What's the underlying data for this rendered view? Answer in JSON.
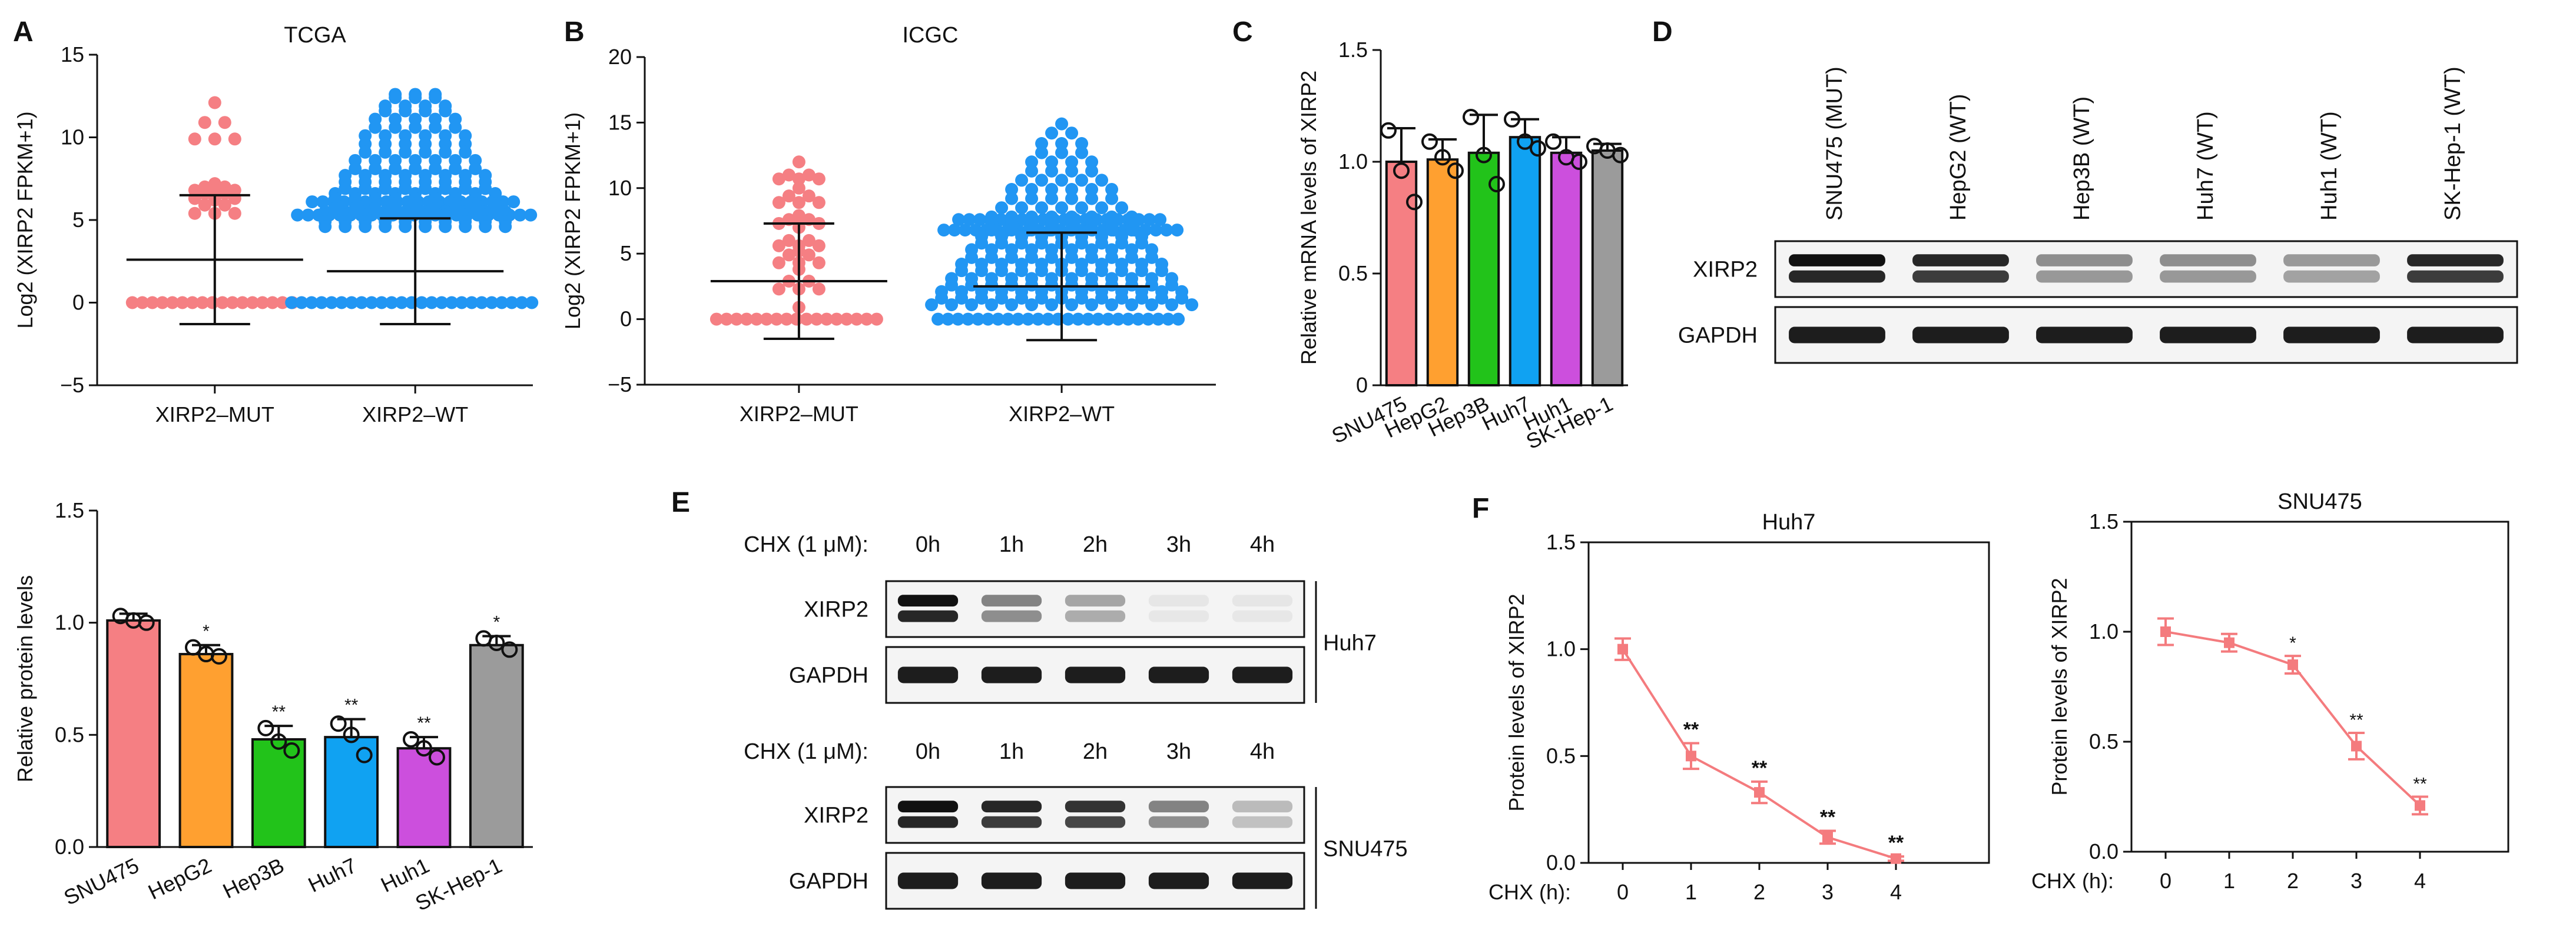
{
  "panel_labels": {
    "A": "A",
    "B": "B",
    "C": "C",
    "D": "D",
    "E": "E",
    "F": "F"
  },
  "colors": {
    "salmon": "#f57f83",
    "blue": "#2196f3",
    "orange": "#ffa030",
    "green": "#22c31a",
    "azure": "#10a2f2",
    "violet": "#cc4fdd",
    "gray": "#9b9b9b",
    "line_red": "#f47b7e"
  },
  "chart_data": [
    {
      "id": "A",
      "type": "scatter",
      "title": "TCGA",
      "ylabel": "Log2 (XIRP2 FPKM+1)",
      "ylim": [
        -5,
        15
      ],
      "yticks": [
        -5,
        0,
        5,
        10,
        15
      ],
      "ytick_labels": [
        "−5",
        "0",
        "5",
        "10",
        "15"
      ],
      "categories": [
        "XIRP2–MUT",
        "XIRP2–WT"
      ],
      "groups": [
        {
          "name": "XIRP2–MUT",
          "mean": 2.6,
          "sd_high": 6.5,
          "sd_low": -1.3,
          "points": [
            12.1,
            10.9,
            9.9,
            7.2,
            7.0,
            6.8,
            6.6,
            6.6,
            6.3,
            6.2,
            5.9,
            5.4
          ]
        },
        {
          "name": "XIRP2–WT",
          "mean": 1.9,
          "sd_high": 5.1,
          "sd_low": -1.3,
          "points": [
            12.6,
            12.4,
            11.9,
            11.6,
            11.1,
            10.6,
            10.1,
            9.6,
            9.1,
            8.6,
            8.1,
            7.7,
            7.3,
            6.9,
            6.6,
            6.3,
            6.0,
            5.7,
            5.5,
            5.3,
            5.1,
            4.9,
            4.6
          ]
        }
      ]
    },
    {
      "id": "B",
      "type": "scatter",
      "title": "ICGC",
      "ylabel": "Log2 (XIRP2 FPKM+1)",
      "ylim": [
        -5,
        20
      ],
      "yticks": [
        -5,
        0,
        5,
        10,
        15,
        20
      ],
      "ytick_labels": [
        "−5",
        "0",
        "5",
        "10",
        "15",
        "20"
      ],
      "categories": [
        "XIRP2–MUT",
        "XIRP2–WT"
      ],
      "groups": [
        {
          "name": "XIRP2–MUT",
          "mean": 2.9,
          "sd_high": 7.3,
          "sd_low": -1.5,
          "points": [
            12.0,
            11.0,
            10.7,
            10.0,
            9.4,
            8.9,
            7.9,
            7.6,
            7.3,
            7.0,
            6.0,
            5.6,
            5.2,
            4.9,
            4.3,
            3.8,
            2.9,
            2.3,
            0.9
          ]
        },
        {
          "name": "XIRP2–WT",
          "mean": 2.5,
          "sd_high": 6.6,
          "sd_low": -1.6,
          "points": [
            14.9,
            14.2,
            13.4,
            12.7,
            12.0,
            11.3,
            10.6,
            9.9,
            9.2,
            8.5,
            7.8,
            7.3,
            6.8,
            6.3,
            5.8,
            5.3,
            4.7,
            4.2,
            3.7,
            3.1,
            2.6,
            2.1,
            1.6,
            1.1
          ]
        }
      ]
    },
    {
      "id": "C",
      "type": "bar",
      "title": "",
      "ylabel": "Relative mRNA levels of XIRP2",
      "ylim": [
        0,
        1.5
      ],
      "yticks": [
        0,
        0.5,
        1.0,
        1.5
      ],
      "ytick_labels": [
        "0",
        "0.5",
        "1.0",
        "1.5"
      ],
      "categories": [
        "SNU475",
        "HepG2",
        "Hep3B",
        "Huh7",
        "Huh1",
        "SK-Hep-1"
      ],
      "values": [
        1.0,
        1.01,
        1.04,
        1.11,
        1.04,
        1.05
      ],
      "errors": [
        0.15,
        0.09,
        0.17,
        0.08,
        0.07,
        0.03
      ],
      "points": [
        [
          1.14,
          0.96,
          0.82
        ],
        [
          1.09,
          1.02,
          0.96
        ],
        [
          1.2,
          1.03,
          0.9
        ],
        [
          1.19,
          1.09,
          1.06
        ],
        [
          1.09,
          1.02,
          1.0
        ],
        [
          1.07,
          1.05,
          1.03
        ]
      ],
      "stars": [
        "",
        "",
        "",
        "",
        "",
        ""
      ]
    },
    {
      "id": "A2",
      "type": "bar",
      "title": "",
      "ylabel": "Relative protein levels",
      "ylim": [
        0,
        1.5
      ],
      "yticks": [
        0,
        0.5,
        1.0,
        1.5
      ],
      "ytick_labels": [
        "0.0",
        "0.5",
        "1.0",
        "1.5"
      ],
      "categories": [
        "SNU475",
        "HepG2",
        "Hep3B",
        "Huh7",
        "Huh1",
        "SK-Hep-1"
      ],
      "values": [
        1.01,
        0.86,
        0.48,
        0.49,
        0.44,
        0.9
      ],
      "errors": [
        0.03,
        0.04,
        0.06,
        0.08,
        0.05,
        0.04
      ],
      "points": [
        [
          1.03,
          1.01,
          1.0
        ],
        [
          0.89,
          0.86,
          0.85
        ],
        [
          0.53,
          0.47,
          0.43
        ],
        [
          0.55,
          0.5,
          0.41
        ],
        [
          0.48,
          0.44,
          0.4
        ],
        [
          0.93,
          0.91,
          0.88
        ]
      ],
      "stars": [
        "",
        "*",
        "**",
        "**",
        "**",
        "*"
      ]
    },
    {
      "id": "F1",
      "type": "line",
      "title": "Huh7",
      "ylabel": "Protein levels of XIRP2",
      "xlabel": "CHX (h):",
      "x": [
        0,
        1,
        2,
        3,
        4
      ],
      "values": [
        1.0,
        0.5,
        0.33,
        0.12,
        0.02
      ],
      "errors": [
        0.05,
        0.06,
        0.05,
        0.03,
        0.01
      ],
      "ylim": [
        0,
        1.5
      ],
      "yticks": [
        0,
        0.5,
        1.0,
        1.5
      ],
      "ytick_labels": [
        "0.0",
        "0.5",
        "1.0",
        "1.5"
      ],
      "stars": [
        "",
        "**",
        "**",
        "**",
        "**"
      ]
    },
    {
      "id": "F2",
      "type": "line",
      "title": "SNU475",
      "ylabel": "Protein levels of XIRP2",
      "xlabel": "CHX (h):",
      "x": [
        0,
        1,
        2,
        3,
        4
      ],
      "values": [
        1.0,
        0.95,
        0.85,
        0.48,
        0.21
      ],
      "errors": [
        0.06,
        0.04,
        0.04,
        0.06,
        0.04
      ],
      "ylim": [
        0,
        1.5
      ],
      "yticks": [
        0,
        0.5,
        1.0,
        1.5
      ],
      "ytick_labels": [
        "0.0",
        "0.5",
        "1.0",
        "1.5"
      ],
      "stars": [
        "",
        "",
        "*",
        "**",
        "**"
      ]
    }
  ],
  "blot_D": {
    "lanes": [
      "SNU475 (MUT)",
      "HepG2 (WT)",
      "Hep3B (WT)",
      "Huh7 (WT)",
      "Huh1 (WT)",
      "SK-Hep-1 (WT)"
    ],
    "rows": [
      "XIRP2",
      "GAPDH"
    ],
    "xirp2_intensity": [
      1.0,
      0.9,
      0.45,
      0.45,
      0.4,
      0.9
    ]
  },
  "blot_E": {
    "header": "CHX (1 μM):",
    "times": [
      "0h",
      "1h",
      "2h",
      "3h",
      "4h"
    ],
    "rows": [
      "XIRP2",
      "GAPDH"
    ],
    "sets": [
      {
        "cell": "Huh7",
        "xirp2_intensity": [
          1.0,
          0.5,
          0.35,
          0.05,
          0.03
        ]
      },
      {
        "cell": "SNU475",
        "xirp2_intensity": [
          1.0,
          0.9,
          0.85,
          0.5,
          0.25
        ]
      }
    ]
  }
}
